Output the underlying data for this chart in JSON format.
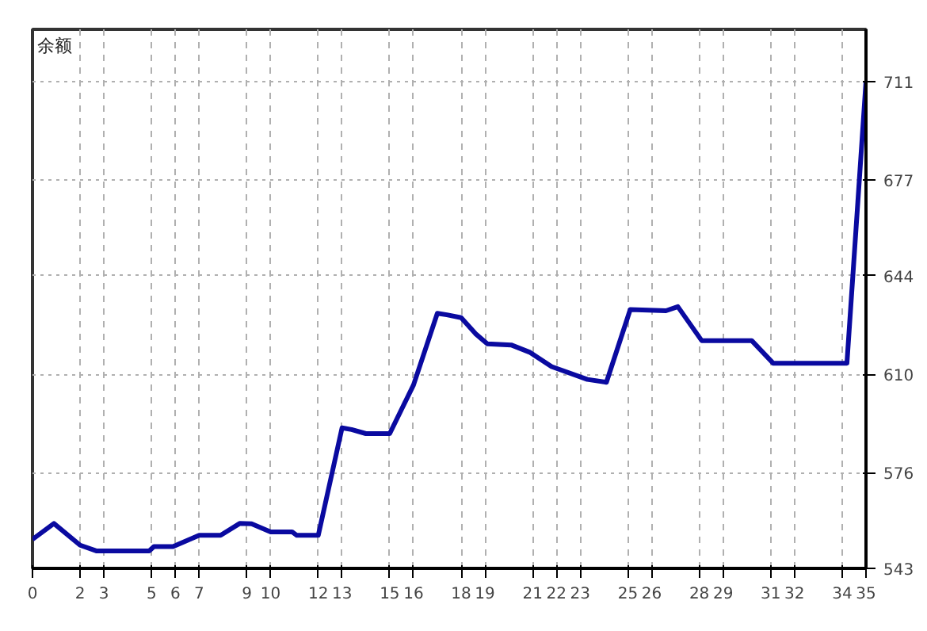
{
  "chart_data": {
    "type": "line",
    "ylabel": "余额",
    "xlim": [
      0,
      35
    ],
    "ylim": [
      543,
      729
    ],
    "xticks": [
      0,
      2,
      3,
      5,
      6,
      7,
      9,
      10,
      12,
      13,
      15,
      16,
      18,
      19,
      21,
      22,
      23,
      25,
      26,
      28,
      29,
      31,
      32,
      34,
      35
    ],
    "yticks": [
      543,
      576,
      610,
      644,
      677,
      711
    ],
    "grid": true,
    "marker": "none",
    "line_style": "solid",
    "series": [
      {
        "color": "#0a0aa0",
        "x": [
          0,
          0.9,
          2.0,
          2.7,
          4.9,
          5.1,
          5.9,
          7.0,
          7.9,
          8.7,
          9.2,
          10.0,
          10.9,
          11.1,
          12.0,
          13.0,
          13.4,
          14.0,
          15.0,
          16.0,
          17.0,
          17.4,
          18.0,
          18.6,
          19.1,
          20.1,
          20.9,
          21.8,
          23.3,
          24.1,
          25.1,
          26.6,
          27.1,
          28.1,
          30.2,
          31.1,
          34.2,
          35
        ],
        "values": [
          553,
          558.5,
          551,
          549,
          549,
          550.5,
          550.5,
          554.4,
          554.4,
          558.5,
          558.4,
          555.6,
          555.6,
          554.4,
          554.4,
          591.5,
          590.9,
          589.5,
          589.5,
          606.3,
          631,
          630.5,
          629.5,
          624,
          620.5,
          620.1,
          617.5,
          612.6,
          608.2,
          607.2,
          632.3,
          631.9,
          633.3,
          621.6,
          621.6,
          613.8,
          613.8,
          711
        ]
      }
    ]
  }
}
